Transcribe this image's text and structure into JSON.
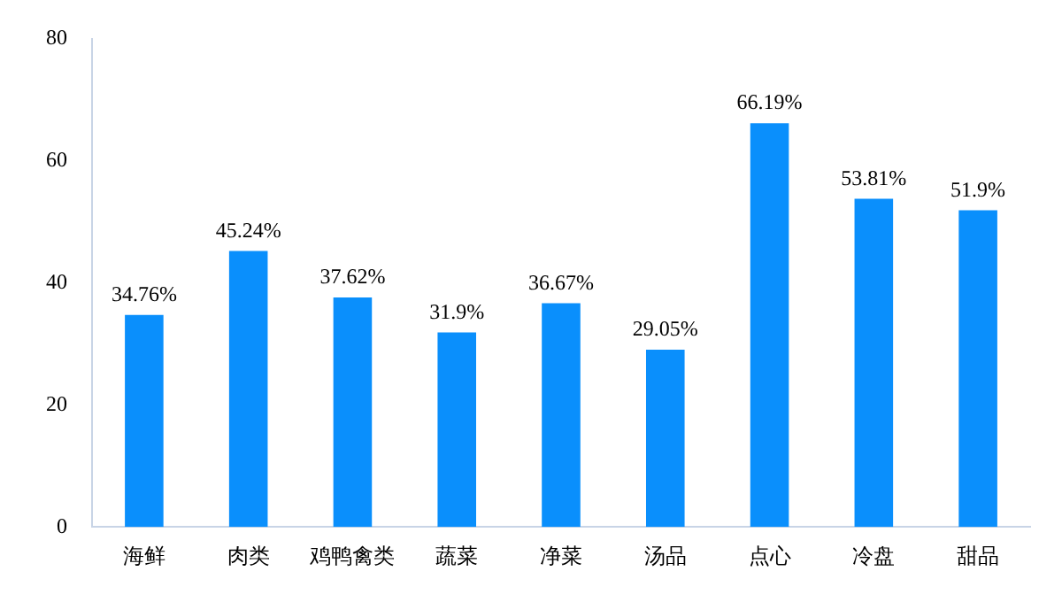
{
  "chart_data": {
    "type": "bar",
    "categories": [
      "海鲜",
      "肉类",
      "鸡鸭禽类",
      "蔬菜",
      "净菜",
      "汤品",
      "点心",
      "冷盘",
      "甜品"
    ],
    "values": [
      34.76,
      45.24,
      37.62,
      31.9,
      36.67,
      29.05,
      66.19,
      53.81,
      51.9
    ],
    "value_labels": [
      "34.76%",
      "45.24%",
      "37.62%",
      "31.9%",
      "36.67%",
      "29.05%",
      "66.19%",
      "53.81%",
      "51.9%"
    ],
    "color": "#0a8ffc",
    "ylim": [
      0,
      80
    ],
    "yticks": [
      0,
      20,
      40,
      60,
      80
    ],
    "grid": false,
    "legend": false
  }
}
